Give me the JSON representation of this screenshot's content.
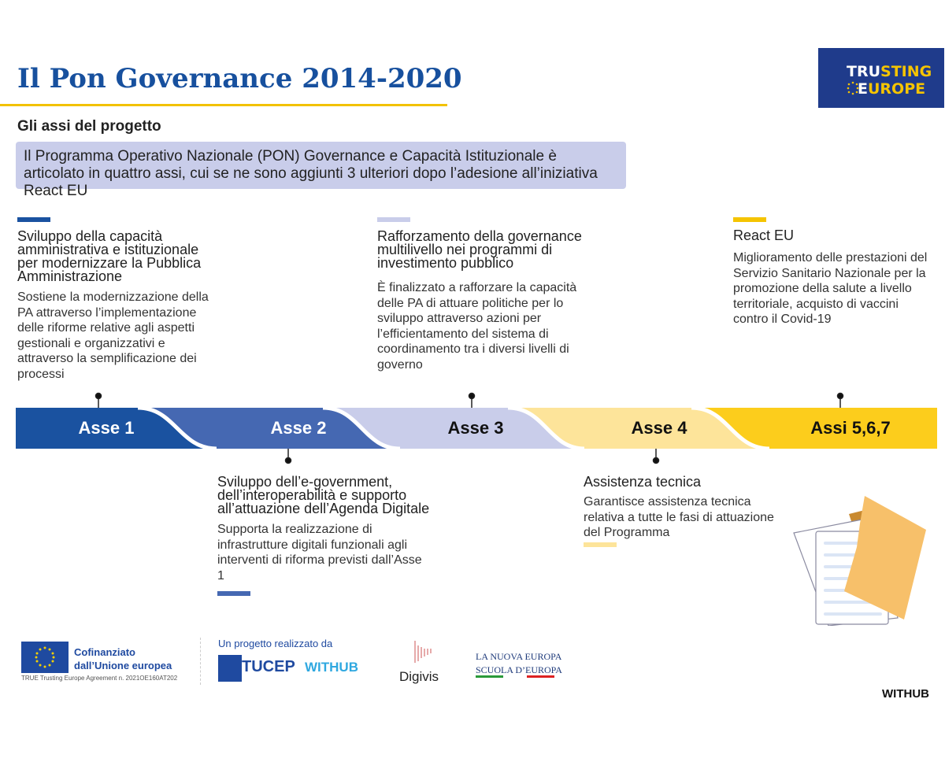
{
  "header": {
    "title": "Il Pon Governance 2014-2020",
    "subtitle": "Gli assi del progetto",
    "logo": "TRUSTING EUROPE"
  },
  "intro": "Il Programma Operativo Nazionale (PON) Governance e Capacità Istituzionale è articolato in quattro assi, cui se ne sono aggiunti 3 ulteriori dopo l’adesione all’iniziativa React EU",
  "colors": {
    "asse1": "#1a52a0",
    "asse2": "#4568b2",
    "asse3": "#c9cdea",
    "asse4": "#fde49a",
    "asse567": "#fccd1c",
    "title": "#17509e",
    "accent": "#f2c200"
  },
  "timeline": {
    "labels": [
      "Asse 1",
      "Asse 2",
      "Asse 3",
      "Asse 4",
      "Assi 5,6,7"
    ]
  },
  "axes": [
    {
      "heading": "Sviluppo della capacità amministrativa e istituzionale per modernizzare la Pubblica Amministrazione",
      "text": "Sostiene la modernizzazione della PA attraverso l’implementazione delle riforme relative agli aspetti gestionali e organizzativi e attraverso la semplificazione dei processi"
    },
    {
      "heading": "Sviluppo dell’e-government, dell’interoperabilità e supporto all’attuazione dell’Agenda Digitale",
      "text": "Supporta la realizzazione di infrastrutture digitali funzionali agli interventi di riforma previsti dall’Asse 1"
    },
    {
      "heading": "Rafforzamento della governance multilivello nei programmi di investimento pubblico",
      "text": "È finalizzato a rafforzare la capacità delle PA di attuare politiche per lo sviluppo attraverso azioni per l’efficientamento del sistema di coordinamento tra i diversi livelli di governo"
    },
    {
      "heading": "Assistenza tecnica",
      "text": "Garantisce assistenza tecnica relativa a tutte le fasi di attuazione del Programma"
    },
    {
      "heading": "React EU",
      "text": "Miglioramento delle prestazioni del Servizio Sanitario Nazionale per la promozione della salute a livello territoriale, acquisto di vaccini contro il Covid-19"
    }
  ],
  "footer": {
    "eu_label": "Cofinanziato dall’Unione europea",
    "agreement": "TRUE Trusting Europe Agreement n. 2021OE160AT202",
    "realized_by": "Un progetto realizzato da",
    "partners": [
      "TUCEP",
      "WITHUB",
      "Digivis",
      "LA NUOVA EUROPA",
      "SCUOLA D’EUROPA"
    ],
    "brand": "WITHUB"
  }
}
